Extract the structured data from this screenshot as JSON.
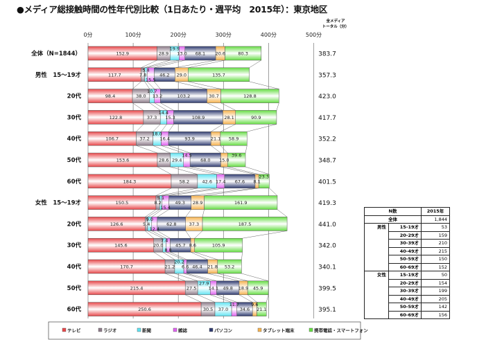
{
  "title": "●メディア総接触時間の性年代別比較（1日あたり・週平均　2015年）：東京地区",
  "chart_data": {
    "type": "bar",
    "stacked": true,
    "orientation": "horizontal",
    "title": "メディア総接触時間の性年代別比較（1日あたり・週平均　2015年）：東京地区",
    "xlim": [
      0,
      500
    ],
    "x_ticks": [
      "0分",
      "100分",
      "200分",
      "300分",
      "400分",
      "500分"
    ],
    "total_header": [
      "全メディア",
      "トータル（分）"
    ],
    "legend_position": "bottom",
    "series_names": [
      "テレビ",
      "ラジオ",
      "新聞",
      "雑誌",
      "パソコン",
      "タブレット端末",
      "携帯電話・スマートフォン"
    ],
    "series_colors": [
      "#e8474a",
      "#8c7a88",
      "#5fe3f2",
      "#e062f0",
      "#2f3b70",
      "#f5b24e",
      "#66dd44"
    ],
    "categories": [
      {
        "label": "全体（N=1844）",
        "values": [
          152.9,
          28.9,
          19.9,
          13.0,
          68.1,
          20.6,
          80.3
        ],
        "total": "383.7"
      },
      {
        "label": "男性　15～19才",
        "values": [
          117.7,
          7.8,
          5.4,
          15.5,
          46.2,
          29.0,
          135.7
        ],
        "total": "357.3"
      },
      {
        "label": "20代",
        "values": [
          98.4,
          38.0,
          10.7,
          13.2,
          103.2,
          30.7,
          128.8
        ],
        "total": "423.0"
      },
      {
        "label": "30代",
        "values": [
          122.8,
          37.3,
          14.4,
          15.3,
          108.9,
          28.1,
          90.9
        ],
        "total": "417.7"
      },
      {
        "label": "40代",
        "values": [
          106.7,
          37.2,
          18.0,
          16.4,
          93.9,
          21.1,
          58.9
        ],
        "total": "352.2"
      },
      {
        "label": "50代",
        "values": [
          153.6,
          28.6,
          29.4,
          14.5,
          68.0,
          15.0,
          39.6
        ],
        "total": "348.7"
      },
      {
        "label": "60代",
        "values": [
          184.3,
          58.2,
          42.6,
          17.4,
          67.6,
          8.1,
          23.3
        ],
        "total": "401.5"
      },
      {
        "label": "女性　15～19才",
        "values": [
          150.5,
          8.2,
          5.1,
          15.4,
          49.3,
          28.9,
          161.9
        ],
        "total": "419.3"
      },
      {
        "label": "20代",
        "values": [
          126.6,
          5.4,
          9.0,
          12.4,
          62.8,
          37.3,
          187.5
        ],
        "total": "441.0"
      },
      {
        "label": "30代",
        "values": [
          145.6,
          20.0,
          7.4,
          8.8,
          45.7,
          8.6,
          105.9
        ],
        "total": "342.0"
      },
      {
        "label": "40代",
        "values": [
          170.7,
          21.2,
          20.2,
          6.6,
          46.4,
          21.8,
          53.2
        ],
        "total": "340.1"
      },
      {
        "label": "50代",
        "values": [
          215.4,
          27.5,
          27.9,
          14.1,
          49.8,
          18.9,
          45.9
        ],
        "total": "399.5"
      },
      {
        "label": "60代",
        "values": [
          250.6,
          30.5,
          37.0,
          11.7,
          34.6,
          9.6,
          21.1
        ],
        "total": "395.1"
      }
    ]
  },
  "n_table": {
    "header": [
      "N数",
      "2015年"
    ],
    "overall": {
      "label": "全体",
      "value": "1,844"
    },
    "groups": [
      {
        "label": "男性",
        "rows": [
          [
            "15-19才",
            "53"
          ],
          [
            "20-29才",
            "159"
          ],
          [
            "30-39才",
            "210"
          ],
          [
            "40-49才",
            "215"
          ],
          [
            "50-59才",
            "150"
          ],
          [
            "60-69才",
            "152"
          ]
        ]
      },
      {
        "label": "女性",
        "rows": [
          [
            "15-19才",
            "50"
          ],
          [
            "20-29才",
            "154"
          ],
          [
            "30-39才",
            "199"
          ],
          [
            "40-49才",
            "205"
          ],
          [
            "50-59才",
            "142"
          ],
          [
            "60-69才",
            "156"
          ]
        ]
      }
    ]
  }
}
